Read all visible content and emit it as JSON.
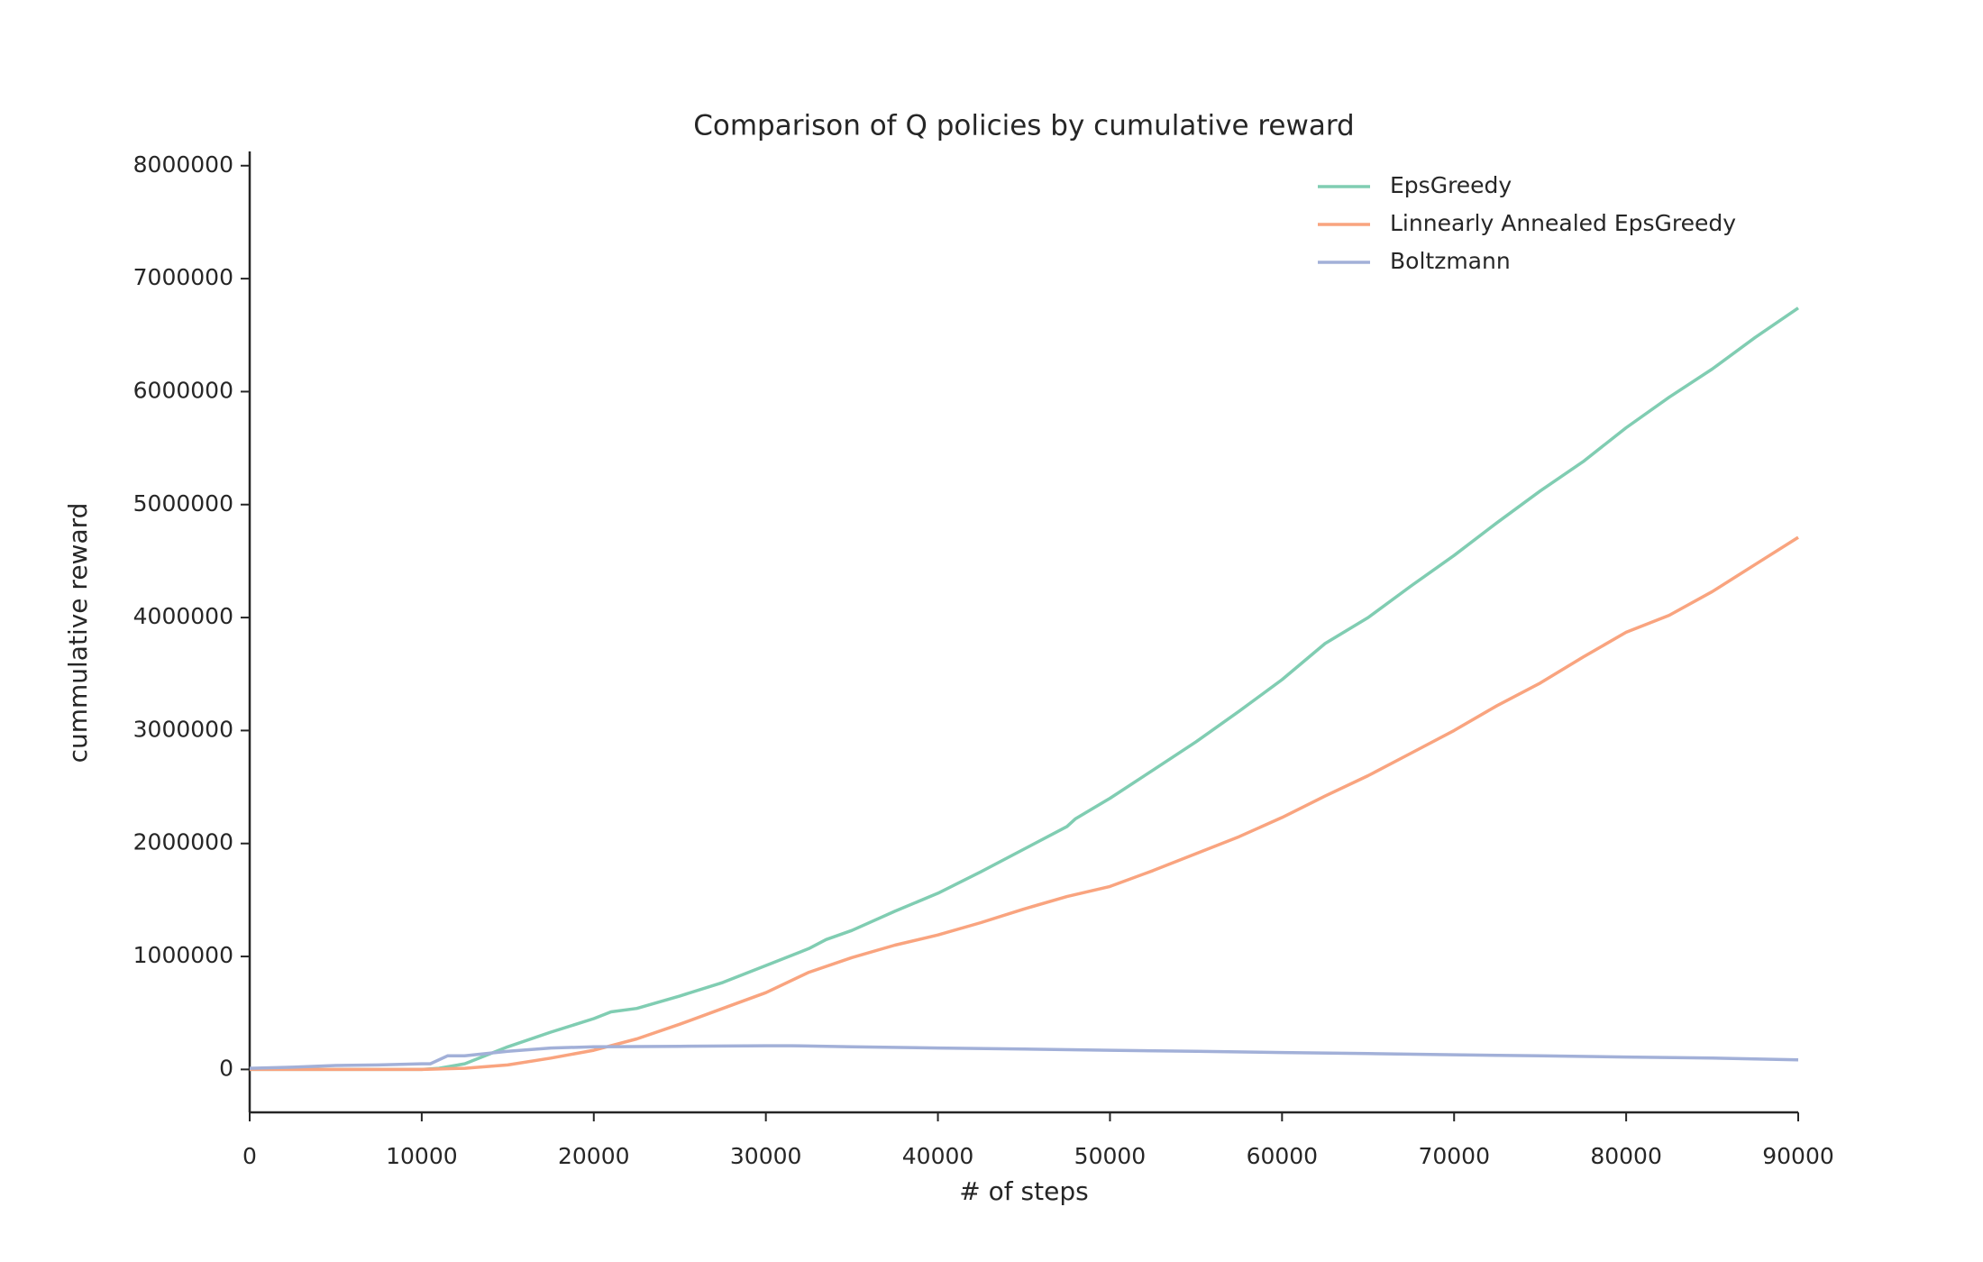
{
  "chart_data": {
    "type": "line",
    "title": "Comparison of Q policies by cumulative reward",
    "x_label": "# of steps",
    "y_label": "cummulative reward",
    "xlim": [
      0,
      90000
    ],
    "xticks": [
      0,
      10000,
      20000,
      30000,
      40000,
      50000,
      60000,
      70000,
      80000,
      90000
    ],
    "ylim": [
      -380000,
      8110000
    ],
    "yticks": [
      0,
      1000000,
      2000000,
      3000000,
      4000000,
      5000000,
      6000000,
      7000000,
      8000000
    ],
    "legend": "upper right",
    "grid": false,
    "series": [
      {
        "name": "EpsGreedy",
        "color": "#80cdb2",
        "x": [
          0,
          2500,
          5000,
          7500,
          10000,
          11000,
          12500,
          15000,
          17500,
          20000,
          21000,
          22500,
          25000,
          27500,
          30000,
          32500,
          33500,
          35000,
          37500,
          40000,
          42500,
          45000,
          47500,
          48000,
          50000,
          52500,
          55000,
          57500,
          60000,
          62500,
          65000,
          67500,
          70000,
          72500,
          75000,
          77500,
          80000,
          82500,
          85000,
          87500,
          90000
        ],
        "values": [
          0,
          0,
          0,
          0,
          0,
          10000,
          50000,
          200000,
          330000,
          450000,
          510000,
          540000,
          650000,
          770000,
          920000,
          1070000,
          1150000,
          1230000,
          1400000,
          1560000,
          1750000,
          1950000,
          2150000,
          2220000,
          2400000,
          2650000,
          2900000,
          3170000,
          3450000,
          3770000,
          4000000,
          4280000,
          4550000,
          4840000,
          5120000,
          5380000,
          5680000,
          5950000,
          6200000,
          6480000,
          6740000
        ]
      },
      {
        "name": "Linnearly Annealed EpsGreedy",
        "color": "#f9a47f",
        "x": [
          0,
          10000,
          12500,
          15000,
          17500,
          20000,
          22500,
          25000,
          27500,
          30000,
          32500,
          35000,
          37500,
          40000,
          42500,
          45000,
          47500,
          50000,
          52500,
          55000,
          57500,
          60000,
          62500,
          65000,
          67500,
          70000,
          72500,
          75000,
          77500,
          80000,
          82500,
          85000,
          87500,
          90000
        ],
        "values": [
          0,
          0,
          10000,
          40000,
          100000,
          170000,
          270000,
          400000,
          540000,
          680000,
          860000,
          990000,
          1100000,
          1190000,
          1300000,
          1420000,
          1530000,
          1620000,
          1760000,
          1910000,
          2060000,
          2230000,
          2420000,
          2600000,
          2800000,
          3000000,
          3220000,
          3420000,
          3650000,
          3870000,
          4020000,
          4230000,
          4470000,
          4710000
        ]
      },
      {
        "name": "Boltzmann",
        "color": "#a2b0d8",
        "x": [
          0,
          2500,
          5000,
          7500,
          10000,
          10500,
          11500,
          12500,
          15000,
          17500,
          20000,
          25000,
          30000,
          31500,
          35000,
          40000,
          45000,
          50000,
          55000,
          60000,
          65000,
          70000,
          75000,
          80000,
          85000,
          90000
        ],
        "values": [
          10000,
          20000,
          35000,
          40000,
          50000,
          50000,
          120000,
          120000,
          160000,
          190000,
          200000,
          205000,
          210000,
          210000,
          200000,
          190000,
          180000,
          170000,
          160000,
          150000,
          140000,
          130000,
          120000,
          110000,
          100000,
          85000
        ]
      }
    ]
  }
}
